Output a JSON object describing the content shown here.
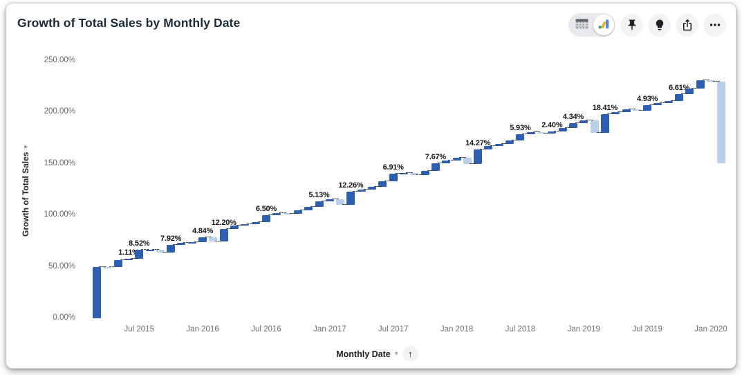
{
  "header": {
    "title": "Growth of Total Sales by Monthly Date"
  },
  "toolbar": {
    "view_toggle": {
      "options": [
        "table-view",
        "chart-view"
      ],
      "selected": "chart-view"
    },
    "buttons": [
      "pin",
      "explore",
      "share",
      "more-options"
    ]
  },
  "icons": {
    "y_axis_caret": "▾",
    "x_axis_caret": "▾",
    "sort_ascending_arrow": "↑"
  },
  "colors": {
    "positive_bar": "#2c5fb3",
    "negative_bar": "#b9cfec",
    "title_text": "#1c2b3a",
    "tick_text": "#63676b",
    "connector": "#41464d",
    "toggle_chart_blue": "#4285f4",
    "toggle_chart_yellow": "#f9ab00",
    "toggle_chart_green": "#25a56a"
  },
  "chart_data": {
    "type": "bar",
    "subtype": "waterfall",
    "title": "Growth of Total Sales by Monthly Date",
    "xlabel": "Monthly Date",
    "ylabel": "Growth of Total Sales",
    "ylim": [
      0,
      250
    ],
    "grid": false,
    "legend": false,
    "y_ticks": [
      "250.00%",
      "200.00%",
      "150.00%",
      "100.00%",
      "50.00%",
      "0.00%"
    ],
    "y_tick_values": [
      250,
      200,
      150,
      100,
      50,
      0
    ],
    "x_ticks": [
      "Jul 2015",
      "Jan 2016",
      "Jul 2016",
      "Jan 2017",
      "Jul 2017",
      "Jan 2018",
      "Jul 2018",
      "Jan 2019",
      "Jul 2019",
      "Jan 2020"
    ],
    "x_tick_slot_start": 4,
    "x_tick_slot_step": 6,
    "bars": [
      {
        "m": "Mar 2015",
        "d": 50.0,
        "l": null
      },
      {
        "m": "Apr 2015",
        "d": -0.5,
        "l": null
      },
      {
        "m": "May 2015",
        "d": 7.0,
        "l": null
      },
      {
        "m": "Jun 2015",
        "d": 1.11,
        "l": "1.11%"
      },
      {
        "m": "Jul 2015",
        "d": 8.52,
        "l": "8.52%"
      },
      {
        "m": "Aug 2015",
        "d": 0.3,
        "l": null
      },
      {
        "m": "Sep 2015",
        "d": -3.0,
        "l": null
      },
      {
        "m": "Oct 2015",
        "d": 7.92,
        "l": "7.92%"
      },
      {
        "m": "Nov 2015",
        "d": 1.5,
        "l": null
      },
      {
        "m": "Dec 2015",
        "d": 1.0,
        "l": null
      },
      {
        "m": "Jan 2016",
        "d": 4.84,
        "l": "4.84%"
      },
      {
        "m": "Feb 2016",
        "d": -4.0,
        "l": null
      },
      {
        "m": "Mar 2016",
        "d": 12.2,
        "l": "12.20%"
      },
      {
        "m": "Apr 2016",
        "d": 3.3,
        "l": null
      },
      {
        "m": "May 2016",
        "d": 1.0,
        "l": null
      },
      {
        "m": "Jun 2016",
        "d": 2.0,
        "l": null
      },
      {
        "m": "Jul 2016",
        "d": 6.5,
        "l": "6.50%"
      },
      {
        "m": "Aug 2016",
        "d": 2.5,
        "l": null
      },
      {
        "m": "Sep 2016",
        "d": -1.0,
        "l": null
      },
      {
        "m": "Oct 2016",
        "d": 3.5,
        "l": null
      },
      {
        "m": "Nov 2016",
        "d": 3.5,
        "l": null
      },
      {
        "m": "Dec 2016",
        "d": 5.13,
        "l": "5.13%"
      },
      {
        "m": "Jan 2017",
        "d": 2.0,
        "l": null
      },
      {
        "m": "Feb 2017",
        "d": -5.0,
        "l": null
      },
      {
        "m": "Mar 2017",
        "d": 12.26,
        "l": "12.26%"
      },
      {
        "m": "Apr 2017",
        "d": 2.0,
        "l": null
      },
      {
        "m": "May 2017",
        "d": 3.0,
        "l": null
      },
      {
        "m": "Jun 2017",
        "d": 5.5,
        "l": null
      },
      {
        "m": "Jul 2017",
        "d": 6.91,
        "l": "6.91%"
      },
      {
        "m": "Aug 2017",
        "d": 1.0,
        "l": null
      },
      {
        "m": "Sep 2017",
        "d": -2.0,
        "l": null
      },
      {
        "m": "Oct 2017",
        "d": 4.0,
        "l": null
      },
      {
        "m": "Nov 2017",
        "d": 7.67,
        "l": "7.67%"
      },
      {
        "m": "Dec 2017",
        "d": 2.5,
        "l": null
      },
      {
        "m": "Jan 2018",
        "d": 2.5,
        "l": null
      },
      {
        "m": "Feb 2018",
        "d": -6.0,
        "l": null
      },
      {
        "m": "Mar 2018",
        "d": 14.27,
        "l": "14.27%"
      },
      {
        "m": "Apr 2018",
        "d": 3.5,
        "l": null
      },
      {
        "m": "May 2018",
        "d": 1.5,
        "l": null
      },
      {
        "m": "Jun 2018",
        "d": 3.5,
        "l": null
      },
      {
        "m": "Jul 2018",
        "d": 5.93,
        "l": "5.93%"
      },
      {
        "m": "Aug 2018",
        "d": 2.0,
        "l": null
      },
      {
        "m": "Sep 2018",
        "d": -1.5,
        "l": null
      },
      {
        "m": "Oct 2018",
        "d": 2.4,
        "l": "2.40%"
      },
      {
        "m": "Nov 2018",
        "d": 3.5,
        "l": null
      },
      {
        "m": "Dec 2018",
        "d": 4.34,
        "l": "4.34%"
      },
      {
        "m": "Jan 2019",
        "d": 3.0,
        "l": null
      },
      {
        "m": "Feb 2019",
        "d": -12.5,
        "l": null
      },
      {
        "m": "Mar 2019",
        "d": 18.41,
        "l": "18.41%"
      },
      {
        "m": "Apr 2019",
        "d": 2.0,
        "l": null
      },
      {
        "m": "May 2019",
        "d": 3.0,
        "l": null
      },
      {
        "m": "Jun 2019",
        "d": -1.5,
        "l": null
      },
      {
        "m": "Jul 2019",
        "d": 4.93,
        "l": "4.93%"
      },
      {
        "m": "Aug 2019",
        "d": 2.0,
        "l": null
      },
      {
        "m": "Sep 2019",
        "d": 2.5,
        "l": null
      },
      {
        "m": "Oct 2019",
        "d": 6.61,
        "l": "6.61%"
      },
      {
        "m": "Nov 2019",
        "d": 5.0,
        "l": null
      },
      {
        "m": "Dec 2019",
        "d": 8.0,
        "l": null
      },
      {
        "m": "Jan 2020",
        "d": -1.0,
        "l": null
      },
      {
        "m": "Feb 2020",
        "d": -79.5,
        "l": null
      }
    ]
  }
}
